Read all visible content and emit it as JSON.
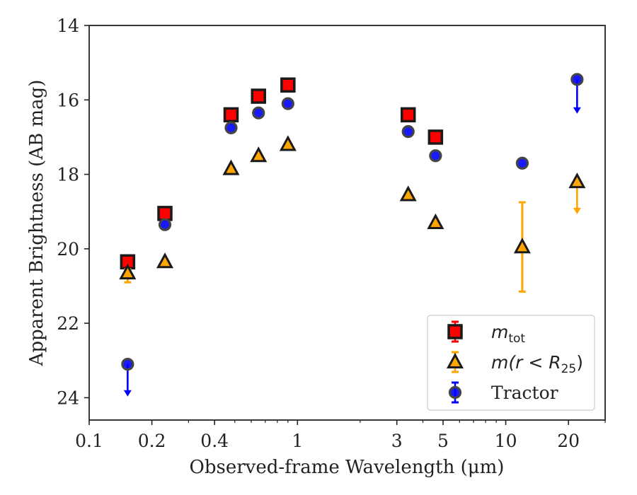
{
  "chart_data": {
    "type": "scatter",
    "xlabel": "Observed-frame Wavelength (μm)",
    "ylabel": "Apparent Brightness (AB mag)",
    "xscale": "log",
    "xlim": [
      0.1,
      30
    ],
    "ylim": [
      24.6,
      14
    ],
    "y_inverted": true,
    "xticks": [
      {
        "value": 0.1,
        "label": "0.1"
      },
      {
        "value": 0.2,
        "label": "0.2"
      },
      {
        "value": 0.4,
        "label": "0.4"
      },
      {
        "value": 1,
        "label": "1"
      },
      {
        "value": 3,
        "label": "3"
      },
      {
        "value": 5,
        "label": "5"
      },
      {
        "value": 10,
        "label": "10"
      },
      {
        "value": 20,
        "label": "20"
      }
    ],
    "yticks": [
      {
        "value": 14,
        "label": "14"
      },
      {
        "value": 16,
        "label": "16"
      },
      {
        "value": 18,
        "label": "18"
      },
      {
        "value": 20,
        "label": "20"
      },
      {
        "value": 22,
        "label": "22"
      },
      {
        "value": 24,
        "label": "24"
      }
    ],
    "legend_position": "lower-right",
    "series": [
      {
        "key": "mtot",
        "legend_main": "m",
        "legend_sub": "tot",
        "marker": "square",
        "face_color": "#ff0000",
        "edge_color": "#1a1a1a",
        "errorbar_color": "#ff0000",
        "points": [
          {
            "x": 0.153,
            "y": 20.35
          },
          {
            "x": 0.231,
            "y": 19.05
          },
          {
            "x": 0.48,
            "y": 16.4
          },
          {
            "x": 0.65,
            "y": 15.9
          },
          {
            "x": 0.9,
            "y": 15.6
          },
          {
            "x": 3.4,
            "y": 16.4
          },
          {
            "x": 4.6,
            "y": 17.0
          }
        ]
      },
      {
        "key": "mr25",
        "legend_main": "m(r < R",
        "legend_sub": "25",
        "legend_end": ")",
        "marker": "triangle",
        "face_color": "#ffa500",
        "edge_color": "#1a1a1a",
        "errorbar_color": "#ffa500",
        "points": [
          {
            "x": 0.153,
            "y": 20.65,
            "yerr_low": 20.55,
            "yerr_high": 20.9
          },
          {
            "x": 0.231,
            "y": 20.35
          },
          {
            "x": 0.48,
            "y": 17.85
          },
          {
            "x": 0.65,
            "y": 17.5
          },
          {
            "x": 0.9,
            "y": 17.2
          },
          {
            "x": 3.4,
            "y": 18.55
          },
          {
            "x": 4.6,
            "y": 19.3
          },
          {
            "x": 12.0,
            "y": 19.95,
            "yerr_low": 18.75,
            "yerr_high": 21.15
          },
          {
            "x": 22.0,
            "y": 18.2,
            "upper_limit": true,
            "arrow_to": 19.05
          }
        ]
      },
      {
        "key": "tractor",
        "legend_main": "Tractor",
        "marker": "circle",
        "face_color": "#0000ff",
        "edge_color": "#444444",
        "errorbar_color": "#0000ff",
        "points": [
          {
            "x": 0.153,
            "y": 23.1,
            "upper_limit": true,
            "arrow_to": 23.95
          },
          {
            "x": 0.231,
            "y": 19.35
          },
          {
            "x": 0.48,
            "y": 16.75
          },
          {
            "x": 0.65,
            "y": 16.35
          },
          {
            "x": 0.9,
            "y": 16.1
          },
          {
            "x": 3.4,
            "y": 16.85
          },
          {
            "x": 4.6,
            "y": 17.5
          },
          {
            "x": 12.0,
            "y": 17.7
          },
          {
            "x": 22.0,
            "y": 15.45,
            "upper_limit": true,
            "arrow_to": 16.35
          }
        ]
      }
    ]
  }
}
